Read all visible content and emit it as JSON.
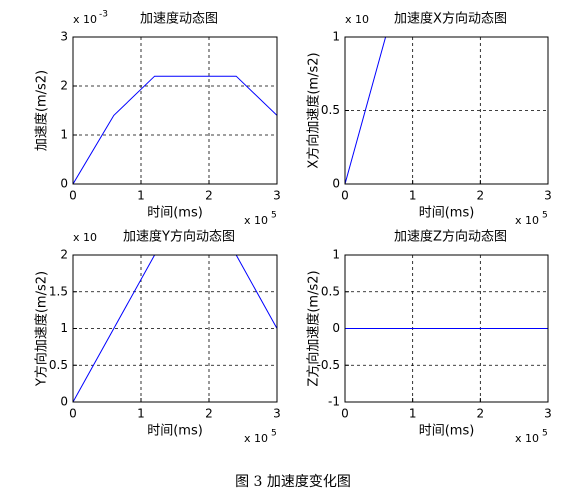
{
  "chart_data": [
    {
      "type": "line",
      "title": "加速度动态图",
      "xlabel": "时间(ms)",
      "ylabel": "加速度(m/s2)",
      "x_multiplier": {
        "base": "x 10",
        "exponent": "5"
      },
      "y_multiplier": {
        "base": "x 10",
        "exponent": "-3"
      },
      "xlim": [
        0,
        3
      ],
      "xticks": [
        0,
        1,
        2,
        3
      ],
      "ylim": [
        0,
        3
      ],
      "yticks": [
        0,
        1,
        2,
        3
      ],
      "grid": true,
      "x": [
        0,
        0.6,
        1.2,
        2.4,
        3
      ],
      "series": [
        {
          "color": "#0000ff",
          "values": [
            0,
            1.4,
            2.2,
            2.2,
            1.4
          ]
        }
      ]
    },
    {
      "type": "line",
      "title": "加速度X方向动态图",
      "xlabel": "时间(ms)",
      "ylabel": "X方向加速度(m/s2)",
      "x_multiplier": {
        "base": "x 10",
        "exponent": "5"
      },
      "y_multiplier": {
        "base": "x 10"
      },
      "xlim": [
        0,
        3
      ],
      "xticks": [
        0,
        1,
        2,
        3
      ],
      "ylim": [
        0,
        1
      ],
      "yticks": [
        0,
        0.5,
        1
      ],
      "grid": true,
      "x": [
        0,
        0.6
      ],
      "series": [
        {
          "color": "#0000ff",
          "values": [
            0,
            1
          ]
        }
      ]
    },
    {
      "type": "line",
      "title": "加速度Y方向动态图",
      "xlabel": "时间(ms)",
      "ylabel": "Y方向加速度(m/s2)",
      "x_multiplier": {
        "base": "x 10",
        "exponent": "5"
      },
      "y_multiplier": {
        "base": "x 10"
      },
      "xlim": [
        0,
        3
      ],
      "xticks": [
        0,
        1,
        2,
        3
      ],
      "ylim": [
        0,
        2
      ],
      "yticks": [
        0,
        0.5,
        1,
        1.5,
        2
      ],
      "grid": true,
      "x": [
        0,
        0.6,
        1.2,
        2.4,
        3
      ],
      "series": [
        {
          "color": "#0000ff",
          "values": [
            0,
            1,
            2,
            2,
            1
          ]
        }
      ]
    },
    {
      "type": "line",
      "title": "加速度Z方向动态图",
      "xlabel": "时间(ms)",
      "ylabel": "Z方向加速度(m/s2)",
      "x_multiplier": {
        "base": "x 10",
        "exponent": "5"
      },
      "xlim": [
        0,
        3
      ],
      "xticks": [
        0,
        1,
        2,
        3
      ],
      "ylim": [
        -1,
        1
      ],
      "yticks": [
        -1,
        -0.5,
        0,
        0.5,
        1
      ],
      "grid": true,
      "x": [
        0,
        3
      ],
      "series": [
        {
          "color": "#0000ff",
          "values": [
            0,
            0
          ]
        }
      ]
    }
  ],
  "caption": "图 3  加速度变化图"
}
